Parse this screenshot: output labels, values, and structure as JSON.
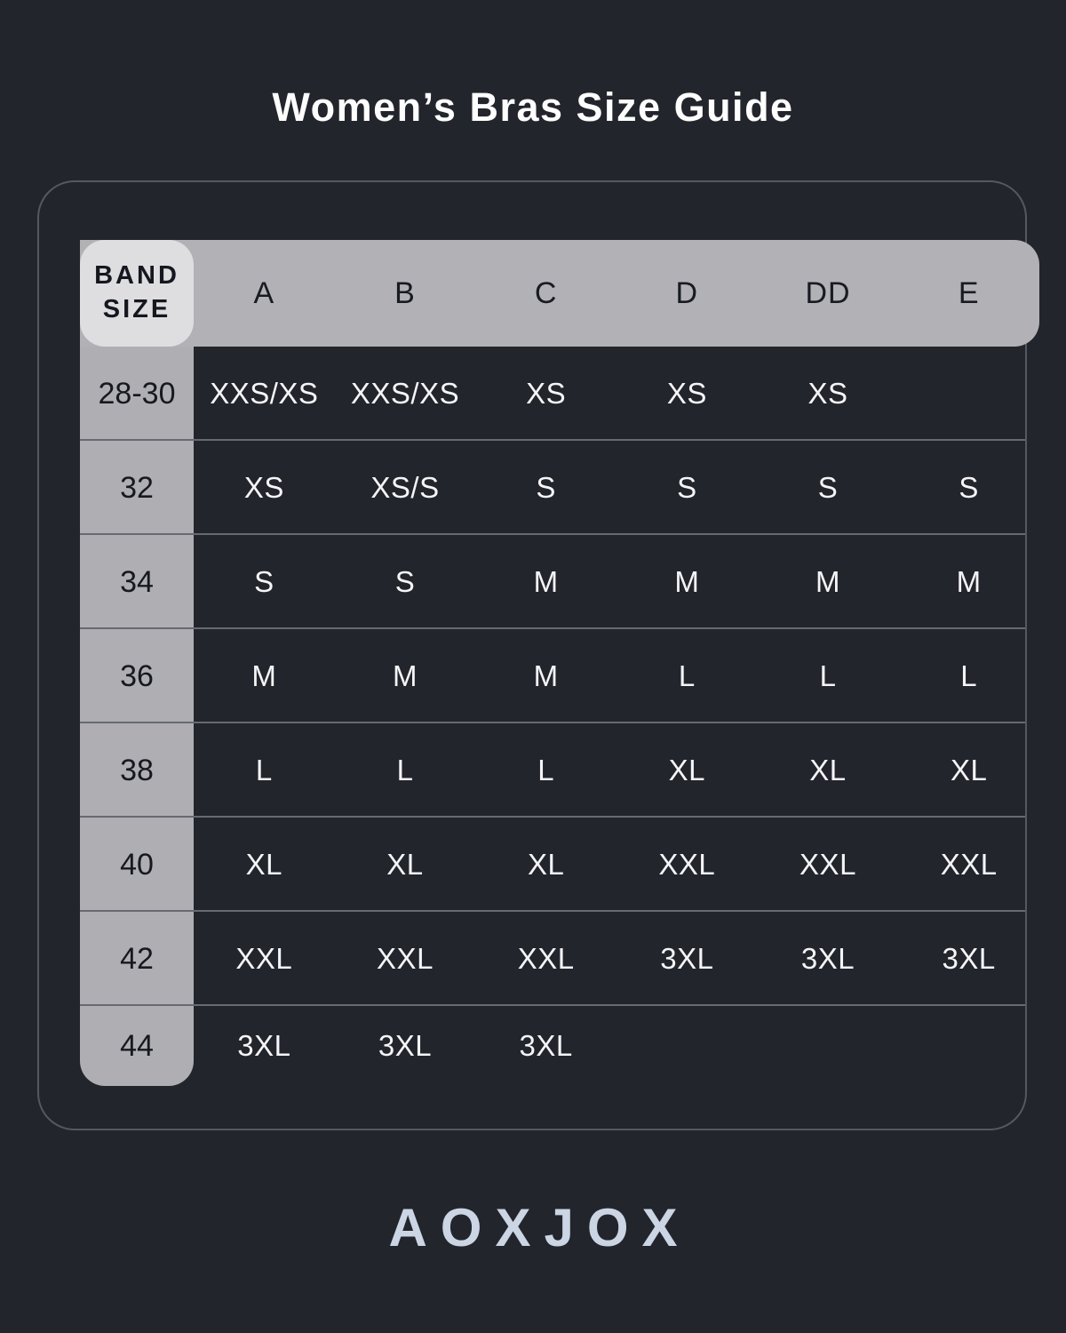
{
  "page": {
    "title": "Women’s Bras Size Guide",
    "colors": {
      "background": "#23252d",
      "panel_border": "#565860",
      "header_bar": "#b1b1b6",
      "corner_cell": "#dedee1",
      "band_column": "#aeaeb3",
      "row_divider": "#686a72",
      "dark_text": "#17191f",
      "light_text": "#f5f5f7",
      "logo_text": "#ccd5e4"
    }
  },
  "chart_data": {
    "type": "table",
    "title": "Women’s Bras Size Guide",
    "corner_header": "BAND\nSIZE",
    "columns": [
      "A",
      "B",
      "C",
      "D",
      "DD",
      "E"
    ],
    "rows": [
      {
        "band": "28-30",
        "cells": [
          "XXS/XS",
          "XXS/XS",
          "XS",
          "XS",
          "XS",
          ""
        ]
      },
      {
        "band": "32",
        "cells": [
          "XS",
          "XS/S",
          "S",
          "S",
          "S",
          "S"
        ]
      },
      {
        "band": "34",
        "cells": [
          "S",
          "S",
          "M",
          "M",
          "M",
          "M"
        ]
      },
      {
        "band": "36",
        "cells": [
          "M",
          "M",
          "M",
          "L",
          "L",
          "L"
        ]
      },
      {
        "band": "38",
        "cells": [
          "L",
          "L",
          "L",
          "XL",
          "XL",
          "XL"
        ]
      },
      {
        "band": "40",
        "cells": [
          "XL",
          "XL",
          "XL",
          "XXL",
          "XXL",
          "XXL"
        ]
      },
      {
        "band": "42",
        "cells": [
          "XXL",
          "XXL",
          "XXL",
          "3XL",
          "3XL",
          "3XL"
        ]
      },
      {
        "band": "44",
        "cells": [
          "3XL",
          "3XL",
          "3XL",
          "",
          "",
          ""
        ]
      }
    ],
    "footer_brand": "AOXJOX"
  }
}
